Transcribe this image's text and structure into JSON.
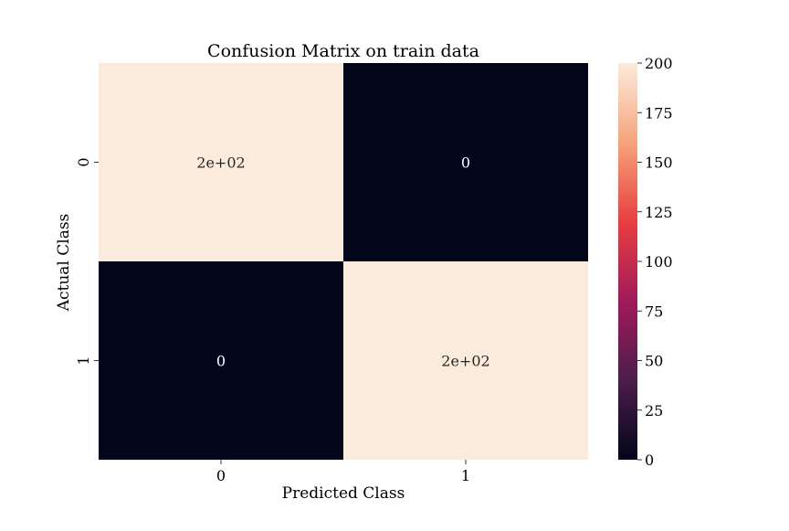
{
  "chart_data": {
    "type": "heatmap",
    "title": "Confusion Matrix on train data",
    "xlabel": "Predicted Class",
    "ylabel": "Actual Class",
    "x_categories": [
      "0",
      "1"
    ],
    "y_categories": [
      "0",
      "1"
    ],
    "values": [
      [
        200,
        0
      ],
      [
        0,
        200
      ]
    ],
    "annotations": [
      [
        "2e+02",
        "0"
      ],
      [
        "0",
        "2e+02"
      ]
    ],
    "colorbar": {
      "range": [
        0,
        200
      ],
      "ticks": [
        0,
        25,
        50,
        75,
        100,
        125,
        150,
        175,
        200
      ],
      "tick_labels": [
        "0",
        "25",
        "50",
        "75",
        "100",
        "125",
        "150",
        "175",
        "200"
      ],
      "colormap": "rocket",
      "colors": [
        "#03051a",
        "#4c1d4b",
        "#a11a5b",
        "#e83f3f",
        "#f6a47c",
        "#faebdd"
      ]
    },
    "grid": false
  }
}
